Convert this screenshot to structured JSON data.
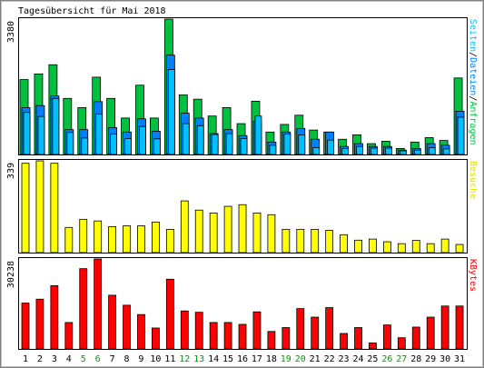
{
  "chart_data": {
    "type": "bar",
    "title": "Tagesübersicht für Mai 2018",
    "categories": [
      "1",
      "2",
      "3",
      "4",
      "5",
      "6",
      "7",
      "8",
      "9",
      "10",
      "11",
      "12",
      "13",
      "14",
      "15",
      "16",
      "17",
      "18",
      "19",
      "20",
      "21",
      "22",
      "23",
      "24",
      "25",
      "26",
      "27",
      "28",
      "29",
      "30",
      "31"
    ],
    "weekend_days": [
      "5",
      "6",
      "12",
      "13",
      "19",
      "20",
      "26",
      "27"
    ],
    "colors": {
      "anfragen": "#00c040",
      "dateien": "#0080ff",
      "seiten": "#00c0ff",
      "besuche": "#ffff00",
      "kbytes": "#ff0000",
      "weekend_label": "#00a000",
      "weekday_label": "#000000",
      "border": "#000000"
    },
    "panels": [
      {
        "id": "hits",
        "ymax_label": "3380",
        "ymax": 3380,
        "legend": [
          {
            "text": "Seiten",
            "color": "#00c0ff"
          },
          {
            "text": "/",
            "color": "#000000"
          },
          {
            "text": "Dateien",
            "color": "#0080ff"
          },
          {
            "text": "/",
            "color": "#000000"
          },
          {
            "text": "Anfragen",
            "color": "#00c040"
          }
        ],
        "series": [
          {
            "name": "Anfragen",
            "color": "#00c040",
            "values": [
              1870,
              2010,
              2240,
              1400,
              1170,
              1930,
              1400,
              910,
              1730,
              910,
              3380,
              1490,
              1380,
              960,
              1170,
              770,
              1330,
              560,
              750,
              980,
              610,
              560,
              380,
              490,
              270,
              330,
              150,
              310,
              420,
              350,
              1910
            ]
          },
          {
            "name": "Dateien",
            "color": "#0080ff",
            "values": [
              1170,
              1220,
              1460,
              620,
              620,
              1320,
              670,
              560,
              890,
              580,
              2480,
              1030,
              910,
              520,
              620,
              470,
              830,
              310,
              560,
              650,
              380,
              560,
              200,
              270,
              200,
              200,
              110,
              150,
              270,
              230,
              1080
            ]
          },
          {
            "name": "Seiten",
            "color": "#00c0ff",
            "values": [
              1050,
              950,
              1400,
              550,
              410,
              1010,
              510,
              400,
              700,
              390,
              2120,
              770,
              720,
              500,
              520,
              400,
              960,
              230,
              510,
              490,
              170,
              360,
              150,
              200,
              160,
              160,
              90,
              110,
              170,
              140,
              930
            ]
          }
        ]
      },
      {
        "id": "visits",
        "ymax_label": "339",
        "ymax": 339,
        "legend": [
          {
            "text": "Besuche",
            "color": "#e0e000"
          }
        ],
        "series": [
          {
            "name": "Besuche",
            "color": "#ffff00",
            "values": [
              330,
              339,
              330,
              93,
              123,
              117,
              96,
              99,
              99,
              113,
              86,
              191,
              157,
              146,
              171,
              177,
              146,
              140,
              86,
              86,
              86,
              82,
              66,
              46,
              50,
              40,
              33,
              45,
              33,
              50,
              30
            ]
          }
        ]
      },
      {
        "id": "kbytes",
        "ymax_label": "30238",
        "ymax": 30238,
        "legend": [
          {
            "text": "KBytes",
            "color": "#ff0000"
          }
        ],
        "series": [
          {
            "name": "KBytes",
            "color": "#ff0000",
            "values": [
              15420,
              16720,
              21270,
              8880,
              26980,
              30238,
              18040,
              14690,
              11550,
              7030,
              23430,
              12770,
              12320,
              8880,
              8880,
              8250,
              12460,
              5870,
              7180,
              13550,
              10680,
              13880,
              5190,
              7180,
              2010,
              8060,
              3760,
              7340,
              10680,
              14420,
              14420
            ]
          }
        ]
      }
    ]
  }
}
